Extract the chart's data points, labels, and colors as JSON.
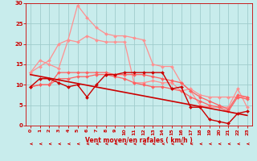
{
  "xlabel": "Vent moyen/en rafales ( km/h )",
  "background_color": "#c8ecec",
  "grid_color": "#a0cccc",
  "x_values": [
    0,
    1,
    2,
    3,
    4,
    5,
    6,
    7,
    8,
    9,
    10,
    11,
    12,
    13,
    14,
    15,
    16,
    17,
    18,
    19,
    20,
    21,
    22,
    23
  ],
  "ylim": [
    0,
    30
  ],
  "xlim": [
    -0.5,
    23.5
  ],
  "series": [
    {
      "y": [
        13.0,
        14.5,
        16.0,
        20.0,
        21.0,
        29.5,
        26.5,
        24.0,
        22.5,
        22.0,
        22.0,
        21.5,
        21.0,
        15.0,
        14.5,
        14.5,
        10.5,
        8.5,
        5.0,
        4.5,
        4.5,
        4.5,
        9.0,
        4.5
      ],
      "color": "#ff9090",
      "linewidth": 0.9,
      "marker": "D",
      "markersize": 2.0
    },
    {
      "y": [
        13.0,
        16.0,
        15.0,
        14.0,
        21.0,
        20.5,
        22.0,
        21.0,
        20.5,
        20.5,
        20.5,
        10.5,
        10.5,
        11.0,
        10.5,
        10.5,
        8.5,
        9.0,
        7.5,
        7.0,
        7.0,
        7.0,
        7.0,
        7.0
      ],
      "color": "#ff9090",
      "linewidth": 0.9,
      "marker": "D",
      "markersize": 2.0
    },
    {
      "y": [
        9.5,
        10.0,
        10.0,
        13.0,
        13.0,
        13.0,
        13.0,
        13.0,
        13.0,
        12.5,
        12.5,
        12.5,
        12.5,
        12.0,
        11.5,
        11.0,
        10.5,
        8.5,
        7.0,
        6.0,
        5.0,
        4.0,
        7.5,
        7.0
      ],
      "color": "#ff6060",
      "linewidth": 0.9,
      "marker": "D",
      "markersize": 2.0
    },
    {
      "y": [
        9.5,
        10.0,
        10.0,
        11.5,
        11.5,
        12.0,
        12.0,
        12.5,
        12.5,
        12.0,
        11.5,
        10.5,
        10.0,
        9.5,
        9.5,
        9.0,
        8.5,
        7.0,
        6.0,
        5.0,
        4.5,
        3.5,
        7.0,
        6.5
      ],
      "color": "#ff6060",
      "linewidth": 0.9,
      "marker": "D",
      "markersize": 2.0
    },
    {
      "y": [
        9.5,
        11.5,
        11.5,
        10.5,
        9.5,
        10.0,
        7.0,
        10.0,
        12.5,
        12.5,
        13.0,
        13.0,
        13.0,
        13.0,
        13.0,
        9.0,
        9.5,
        4.5,
        4.5,
        1.5,
        1.0,
        0.5,
        3.0,
        3.5
      ],
      "color": "#cc0000",
      "linewidth": 1.0,
      "marker": "D",
      "markersize": 2.0
    }
  ],
  "trend_line": {
    "x0": 0,
    "y0": 12.5,
    "x1": 23,
    "y1": 2.5,
    "color": "#cc0000",
    "linewidth": 1.2
  },
  "yticks": [
    0,
    5,
    10,
    15,
    20,
    25,
    30
  ],
  "xticks": [
    0,
    1,
    2,
    3,
    4,
    5,
    6,
    7,
    8,
    9,
    10,
    11,
    12,
    13,
    14,
    15,
    16,
    17,
    18,
    19,
    20,
    21,
    22,
    23
  ],
  "tick_color": "#cc0000",
  "spine_color": "#cc0000",
  "xlabel_color": "#cc0000",
  "arrow_color": "#cc0000"
}
